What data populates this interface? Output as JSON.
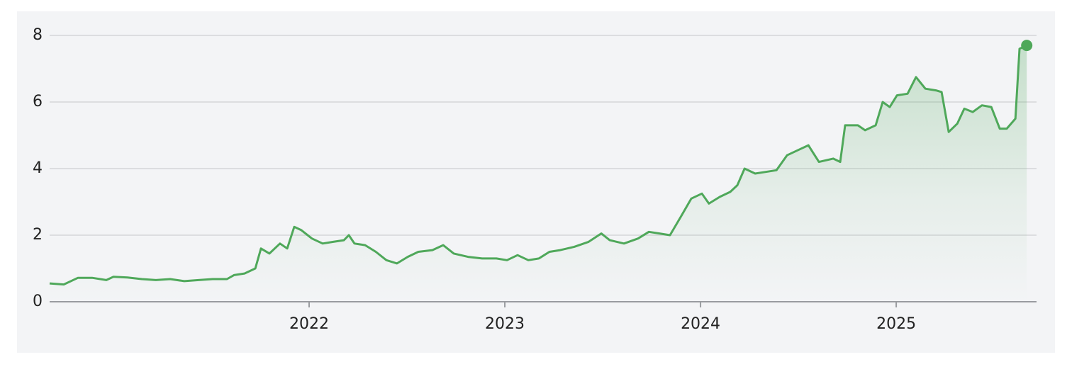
{
  "chart_data": {
    "type": "line",
    "x": [
      2020.674,
      2020.746,
      2020.819,
      2020.891,
      2020.964,
      2021.0,
      2021.072,
      2021.145,
      2021.217,
      2021.29,
      2021.362,
      2021.435,
      2021.507,
      2021.58,
      2021.616,
      2021.67,
      2021.725,
      2021.754,
      2021.797,
      2021.851,
      2021.888,
      2021.924,
      2021.96,
      2022.014,
      2022.069,
      2022.123,
      2022.178,
      2022.203,
      2022.232,
      2022.286,
      2022.341,
      2022.395,
      2022.449,
      2022.504,
      2022.558,
      2022.63,
      2022.685,
      2022.739,
      2022.812,
      2022.884,
      2022.957,
      2023.011,
      2023.065,
      2023.12,
      2023.174,
      2023.228,
      2023.283,
      2023.355,
      2023.428,
      2023.493,
      2023.536,
      2023.609,
      2023.681,
      2023.736,
      2023.79,
      2023.844,
      2023.899,
      2023.953,
      2024.007,
      2024.043,
      2024.098,
      2024.152,
      2024.188,
      2024.225,
      2024.279,
      2024.333,
      2024.388,
      2024.442,
      2024.496,
      2024.551,
      2024.605,
      2024.678,
      2024.714,
      2024.739,
      2024.804,
      2024.841,
      2024.895,
      2024.931,
      2024.967,
      2025.004,
      2025.058,
      2025.101,
      2025.149,
      2025.203,
      2025.232,
      2025.268,
      2025.312,
      2025.348,
      2025.391,
      2025.438,
      2025.486,
      2025.529,
      2025.565,
      2025.609,
      2025.63,
      2025.667
    ],
    "series": [
      {
        "color": "#4fa85a",
        "values": [
          0.55,
          0.52,
          0.72,
          0.72,
          0.65,
          0.75,
          0.73,
          0.68,
          0.65,
          0.68,
          0.62,
          0.65,
          0.68,
          0.68,
          0.8,
          0.85,
          1.0,
          1.6,
          1.45,
          1.75,
          1.6,
          2.25,
          2.15,
          1.9,
          1.75,
          1.8,
          1.85,
          2.0,
          1.75,
          1.7,
          1.5,
          1.25,
          1.15,
          1.35,
          1.5,
          1.55,
          1.7,
          1.45,
          1.35,
          1.3,
          1.3,
          1.25,
          1.4,
          1.25,
          1.3,
          1.5,
          1.55,
          1.65,
          1.8,
          2.05,
          1.85,
          1.75,
          1.9,
          2.1,
          2.05,
          2.0,
          2.55,
          3.1,
          3.25,
          2.95,
          3.15,
          3.3,
          3.5,
          4.0,
          3.85,
          3.9,
          3.95,
          4.4,
          4.55,
          4.7,
          4.2,
          4.3,
          4.2,
          5.3,
          5.3,
          5.15,
          5.3,
          6.0,
          5.85,
          6.2,
          6.25,
          6.75,
          6.4,
          6.35,
          6.3,
          5.1,
          5.35,
          5.8,
          5.7,
          5.9,
          5.85,
          5.2,
          5.2,
          5.5,
          7.6,
          7.7
        ]
      }
    ],
    "xlim": [
      2020.674,
      2025.717
    ],
    "xticks": [
      2022,
      2023,
      2024,
      2025
    ],
    "ylim": [
      0,
      8
    ],
    "yticks": [
      0,
      2,
      4,
      6,
      8
    ],
    "grid": true
  }
}
